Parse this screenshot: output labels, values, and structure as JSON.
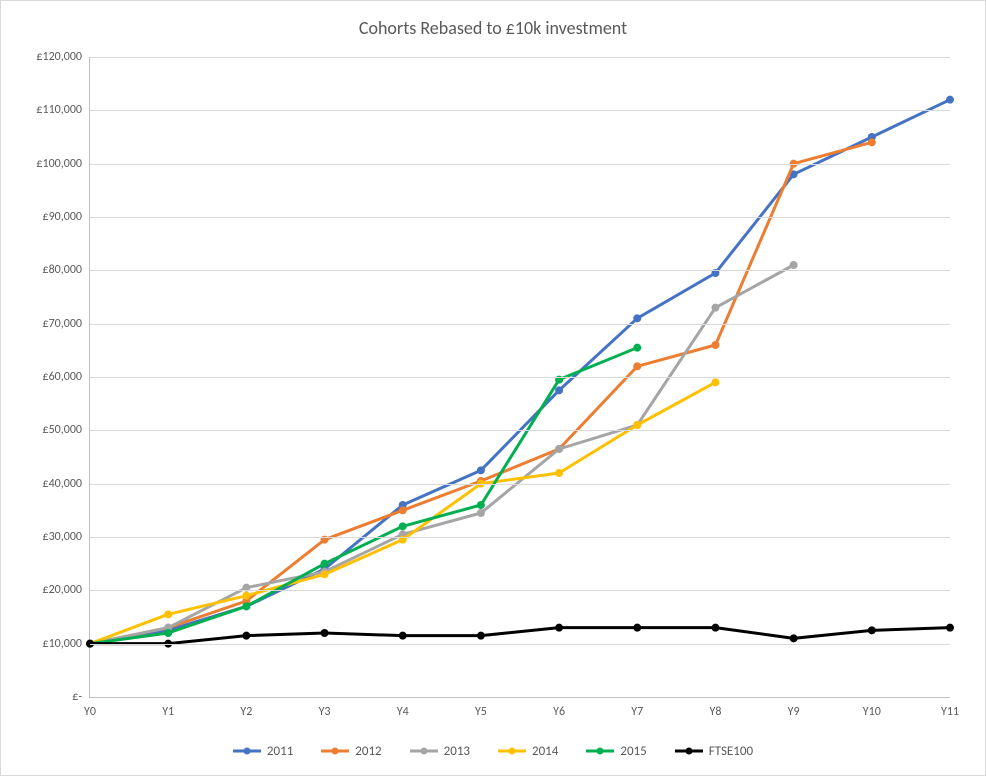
{
  "chart": {
    "type": "line",
    "title": "Cohorts Rebased to £10k investment",
    "title_fontsize": 18,
    "background_color": "#ffffff",
    "border_color": "#d9d9d9",
    "axis_color": "#bfbfbf",
    "grid_color": "#d9d9d9",
    "text_color": "#595959",
    "label_fontsize": 12,
    "legend_fontsize": 13,
    "marker_radius": 4,
    "line_width": 3,
    "categories": [
      "Y0",
      "Y1",
      "Y2",
      "Y3",
      "Y4",
      "Y5",
      "Y6",
      "Y7",
      "Y8",
      "Y9",
      "Y10",
      "Y11"
    ],
    "ylim": [
      0,
      120000
    ],
    "ytick_step": 10000,
    "ytick_labels": [
      "£-",
      "£10,000",
      "£20,000",
      "£30,000",
      "£40,000",
      "£50,000",
      "£60,000",
      "£70,000",
      "£80,000",
      "£90,000",
      "£100,000",
      "£110,000",
      "£120,000"
    ],
    "series": [
      {
        "name": "2011",
        "color": "#4472c4",
        "values": [
          10000,
          12500,
          17000,
          24000,
          36000,
          42500,
          57500,
          71000,
          79500,
          98000,
          105000,
          112000
        ]
      },
      {
        "name": "2012",
        "color": "#ed7d31",
        "values": [
          10000,
          13000,
          18000,
          29500,
          35000,
          40500,
          46500,
          62000,
          66000,
          100000,
          104000
        ]
      },
      {
        "name": "2013",
        "color": "#a5a5a5",
        "values": [
          10000,
          13000,
          20500,
          23500,
          30500,
          34500,
          46500,
          51000,
          73000,
          81000
        ]
      },
      {
        "name": "2014",
        "color": "#ffc000",
        "values": [
          10000,
          15500,
          19000,
          23000,
          29500,
          40000,
          42000,
          51000,
          59000
        ]
      },
      {
        "name": "2015",
        "color": "#00b050",
        "values": [
          10000,
          12000,
          17000,
          25000,
          32000,
          36000,
          59500,
          65500
        ]
      },
      {
        "name": "FTSE100",
        "color": "#000000",
        "values": [
          10000,
          10000,
          11500,
          12000,
          11500,
          11500,
          13000,
          13000,
          13000,
          11000,
          12500,
          13000
        ]
      }
    ]
  }
}
